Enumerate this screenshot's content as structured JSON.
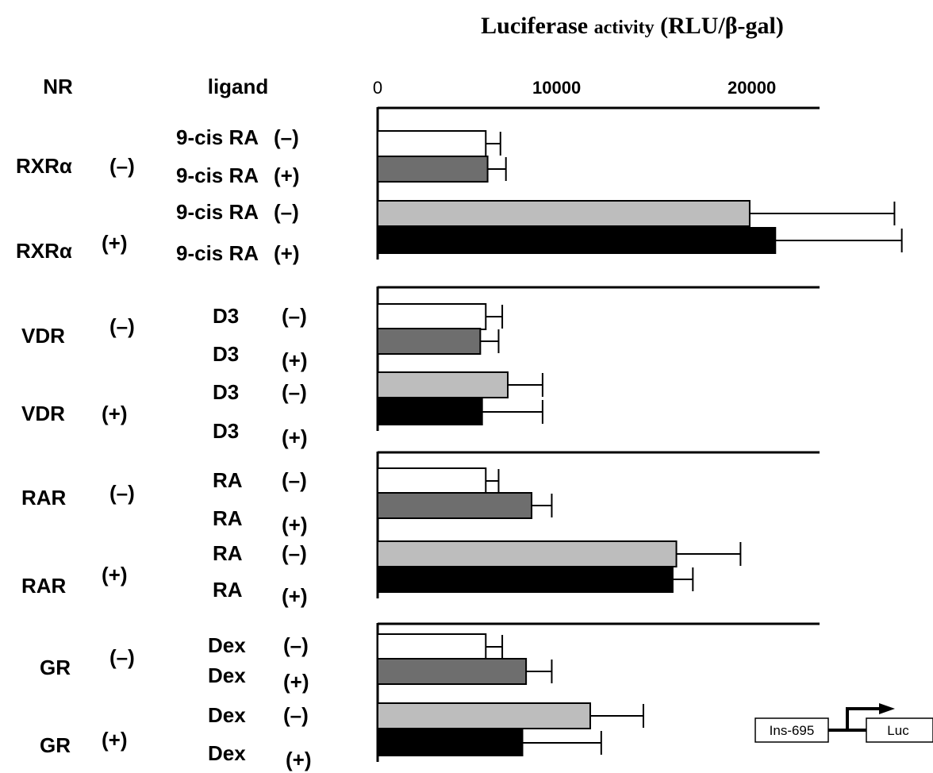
{
  "chart_data": {
    "type": "bar",
    "orientation": "horizontal",
    "title": "Luciferase activity (RLU/β-gal)",
    "title_parts": [
      "Luciferase ",
      "activity",
      " (RLU/β-gal)"
    ],
    "xlim": [
      0,
      24000
    ],
    "x_ticks": [
      "0",
      "10000",
      "20000"
    ],
    "x_tick_values": [
      0,
      10000,
      20000
    ],
    "column_headers": {
      "nr": "NR",
      "ligand": "ligand"
    },
    "fill_colors": [
      "#ffffff",
      "#6e6e6e",
      "#bdbdbd",
      "#000000"
    ],
    "groups": [
      {
        "nr_labels": [
          {
            "name": "RXRα",
            "state": "(–)"
          },
          {
            "name": "RXRα",
            "state": "(+)"
          }
        ],
        "bars": [
          {
            "ligand": "9-cis RA",
            "state": "(–)",
            "value": 5900,
            "error": 800
          },
          {
            "ligand": "9-cis RA",
            "state": "(+)",
            "value": 6000,
            "error": 1000
          },
          {
            "ligand": "9-cis RA",
            "state": "(–)",
            "value": 20300,
            "error": 7900
          },
          {
            "ligand": "9-cis RA",
            "state": "(+)",
            "value": 21700,
            "error": 6900
          }
        ]
      },
      {
        "nr_labels": [
          {
            "name": "VDR",
            "state": "(–)"
          },
          {
            "name": "VDR",
            "state": "(+)"
          }
        ],
        "bars": [
          {
            "ligand": "D3",
            "state": "(–)",
            "value": 5900,
            "error": 900
          },
          {
            "ligand": "D3",
            "state": "(+)",
            "value": 5600,
            "error": 1000
          },
          {
            "ligand": "D3",
            "state": "(–)",
            "value": 7100,
            "error": 1900
          },
          {
            "ligand": "D3",
            "state": "(+)",
            "value": 5700,
            "error": 3300
          }
        ]
      },
      {
        "nr_labels": [
          {
            "name": "RAR",
            "state": "(–)"
          },
          {
            "name": "RAR",
            "state": "(+)"
          }
        ],
        "bars": [
          {
            "ligand": "RA",
            "state": "(–)",
            "value": 5900,
            "error": 700
          },
          {
            "ligand": "RA",
            "state": "(+)",
            "value": 8400,
            "error": 1100
          },
          {
            "ligand": "RA",
            "state": "(–)",
            "value": 16300,
            "error": 3500
          },
          {
            "ligand": "RA",
            "state": "(+)",
            "value": 16100,
            "error": 1100
          }
        ]
      },
      {
        "nr_labels": [
          {
            "name": "GR",
            "state": "(–)"
          },
          {
            "name": "GR",
            "state": "(+)"
          }
        ],
        "bars": [
          {
            "ligand": "Dex",
            "state": "(–)",
            "value": 5900,
            "error": 900
          },
          {
            "ligand": "Dex",
            "state": "(+)",
            "value": 8100,
            "error": 1400
          },
          {
            "ligand": "Dex",
            "state": "(–)",
            "value": 11600,
            "error": 2900
          },
          {
            "ligand": "Dex",
            "state": "(+)",
            "value": 7900,
            "error": 4300
          }
        ]
      }
    ],
    "construct": {
      "promoter": "Ins-695",
      "reporter": "Luc"
    }
  }
}
